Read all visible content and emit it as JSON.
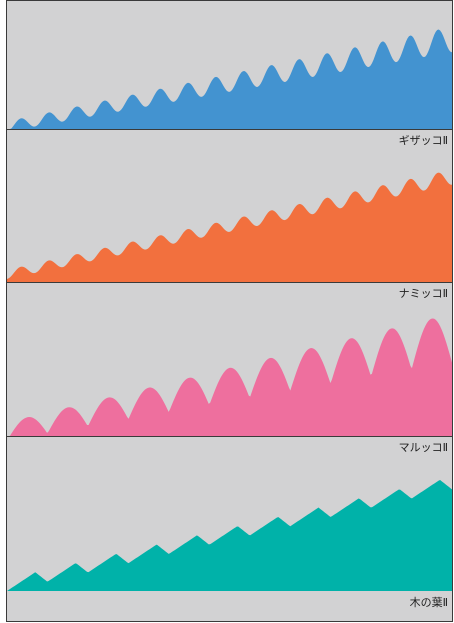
{
  "chart_data": {
    "type": "area",
    "x_range": [
      0,
      1
    ],
    "y_range": [
      0,
      1
    ],
    "grid": false,
    "series": [
      {
        "name": "ギザッコⅡ",
        "color": "#4393d0",
        "shape": "sine",
        "waves": 16,
        "base_start": 0.02,
        "base_end": 0.7,
        "amp_start": 0.04,
        "amp_end": 0.1
      },
      {
        "name": "ナミッコⅡ",
        "color": "#f2703e",
        "shape": "sine",
        "waves": 16,
        "base_start": 0.05,
        "base_end": 0.69,
        "amp_start": 0.03,
        "amp_end": 0.05
      },
      {
        "name": "マルッコⅡ",
        "color": "#ee6f9e",
        "shape": "round",
        "waves": 11,
        "base_start": 0.03,
        "base_end": 0.64,
        "amp_start": 0.06,
        "amp_end": 0.16
      },
      {
        "name": "木の葉Ⅱ",
        "color": "#00b2a9",
        "shape": "leaf",
        "waves": 11,
        "base_start": 0.04,
        "base_end": 0.7,
        "amp_start": 0.04,
        "amp_end": 0.04
      }
    ]
  }
}
